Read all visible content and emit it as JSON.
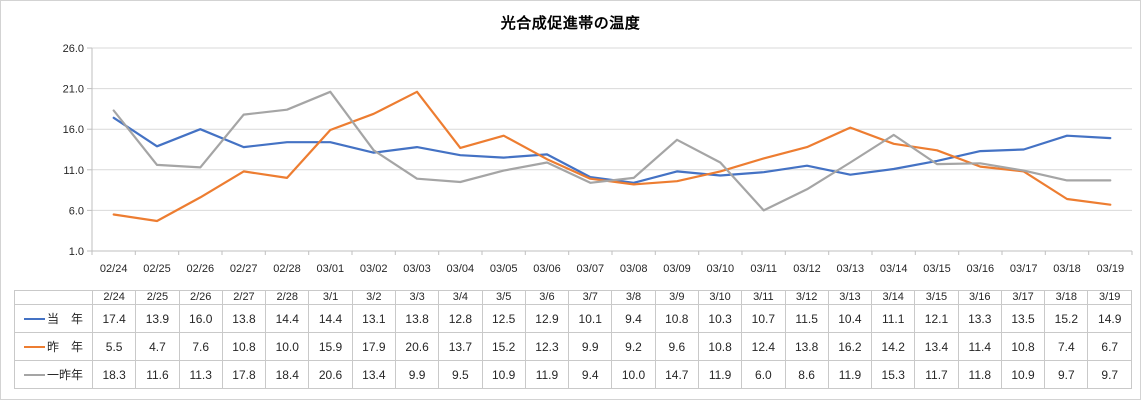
{
  "chart_data": {
    "type": "line",
    "title": "光合成促進帯の温度",
    "x_axis_labels": [
      "02/24",
      "02/25",
      "02/26",
      "02/27",
      "02/28",
      "03/01",
      "03/02",
      "03/03",
      "03/04",
      "03/05",
      "03/06",
      "03/07",
      "03/08",
      "03/09",
      "03/10",
      "03/11",
      "03/12",
      "03/13",
      "03/14",
      "03/15",
      "03/16",
      "03/17",
      "03/18",
      "03/19"
    ],
    "table_headers": [
      "2/24",
      "2/25",
      "2/26",
      "2/27",
      "2/28",
      "3/1",
      "3/2",
      "3/3",
      "3/4",
      "3/5",
      "3/6",
      "3/7",
      "3/8",
      "3/9",
      "3/10",
      "3/11",
      "3/12",
      "3/13",
      "3/14",
      "3/15",
      "3/16",
      "3/17",
      "3/18",
      "3/19"
    ],
    "y_ticks": [
      26.0,
      21.0,
      16.0,
      11.0,
      6.0,
      1.0
    ],
    "ylim": [
      1.0,
      26.0
    ],
    "grid": true,
    "legend_position": "data-table-left-column",
    "series": [
      {
        "name": "当　年",
        "color": "#4472C4",
        "values": [
          17.4,
          13.9,
          16.0,
          13.8,
          14.4,
          14.4,
          13.1,
          13.8,
          12.8,
          12.5,
          12.9,
          10.1,
          9.4,
          10.8,
          10.3,
          10.7,
          11.5,
          10.4,
          11.1,
          12.1,
          13.3,
          13.5,
          15.2,
          14.9
        ]
      },
      {
        "name": "昨　年",
        "color": "#ED7D31",
        "values": [
          5.5,
          4.7,
          7.6,
          10.8,
          10.0,
          15.9,
          17.9,
          20.6,
          13.7,
          15.2,
          12.3,
          9.9,
          9.2,
          9.6,
          10.8,
          12.4,
          13.8,
          16.2,
          14.2,
          13.4,
          11.4,
          10.8,
          7.4,
          6.7
        ]
      },
      {
        "name": "一昨年",
        "color": "#A5A5A5",
        "values": [
          18.3,
          11.6,
          11.3,
          17.8,
          18.4,
          20.6,
          13.4,
          9.9,
          9.5,
          10.9,
          11.9,
          9.4,
          10.0,
          14.7,
          11.9,
          6.0,
          8.6,
          11.9,
          15.3,
          11.7,
          11.8,
          10.9,
          9.7,
          9.7
        ]
      }
    ]
  },
  "colors": {
    "grid": "#D9D9D9",
    "axis": "#BFBFBF",
    "table_border": "#C9C9C9",
    "text": "#262626",
    "title": "#000000",
    "background": "#FFFFFF"
  }
}
